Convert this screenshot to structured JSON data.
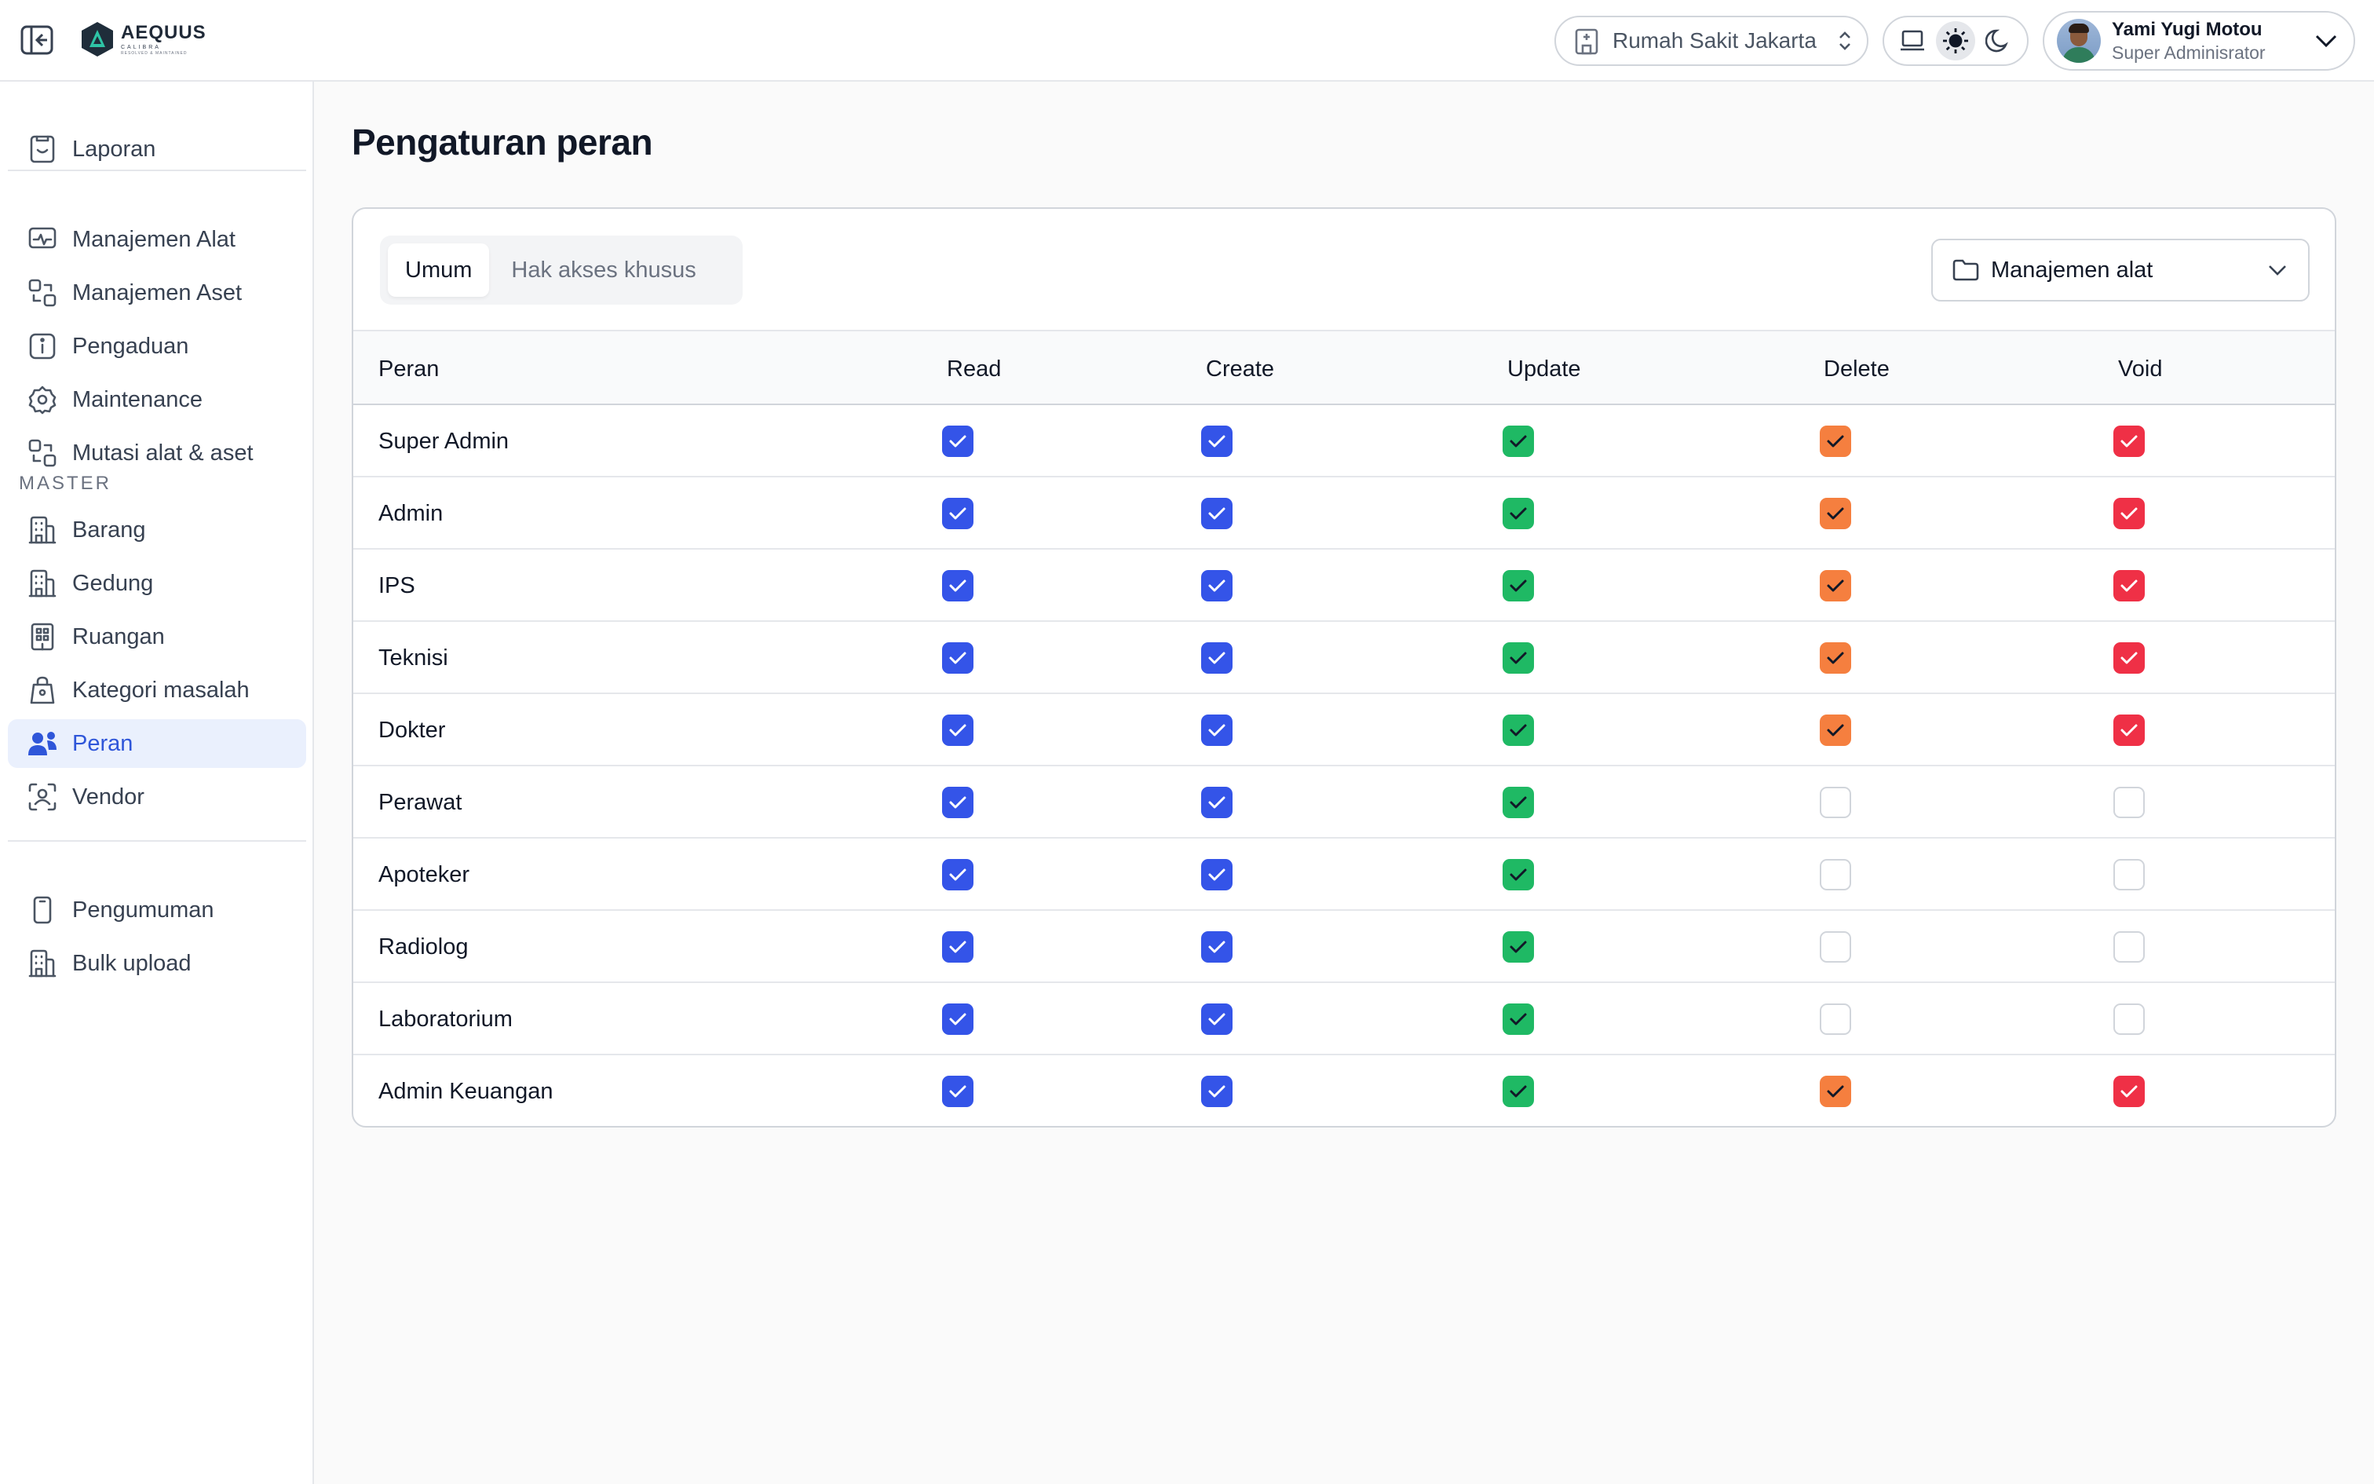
{
  "header": {
    "logo": {
      "name": "AEQUUS",
      "sub": "CALIBRA",
      "tagline": "RESOLVED & MAINTAINED"
    },
    "hospital": "Rumah Sakit Jakarta",
    "theme": {
      "options": [
        "system",
        "light",
        "dark"
      ],
      "active": "light"
    },
    "user": {
      "name": "Yami Yugi Motou",
      "role": "Super Adminisrator"
    }
  },
  "sidebar": {
    "top": [
      {
        "label": "Laporan",
        "icon": "report-icon"
      }
    ],
    "main": [
      {
        "label": "Manajemen Alat",
        "icon": "monitor-icon"
      },
      {
        "label": "Manajemen Aset",
        "icon": "asset-transfer-icon"
      },
      {
        "label": "Pengaduan",
        "icon": "info-icon"
      },
      {
        "label": "Maintenance",
        "icon": "settings-gear-icon"
      },
      {
        "label": "Mutasi alat & aset",
        "icon": "mutation-icon"
      }
    ],
    "master_title": "MASTER",
    "master": [
      {
        "label": "Barang",
        "icon": "building-icon"
      },
      {
        "label": "Gedung",
        "icon": "building-icon"
      },
      {
        "label": "Ruangan",
        "icon": "room-icon"
      },
      {
        "label": "Kategori masalah",
        "icon": "bag-icon"
      },
      {
        "label": "Peran",
        "icon": "users-icon",
        "active": true
      },
      {
        "label": "Vendor",
        "icon": "vendor-scan-icon"
      }
    ],
    "bottom": [
      {
        "label": "Pengumuman",
        "icon": "phone-icon"
      },
      {
        "label": "Bulk upload",
        "icon": "building-icon"
      }
    ]
  },
  "main": {
    "title": "Pengaturan peran",
    "tabs": [
      {
        "label": "Umum",
        "active": true
      },
      {
        "label": "Hak akses khusus",
        "active": false
      }
    ],
    "module_select": "Manajemen alat",
    "columns": [
      "Peran",
      "Read",
      "Create",
      "Update",
      "Delete",
      "Void"
    ],
    "permission_colors": {
      "Read": "#3454e8",
      "Create": "#3454e8",
      "Update": "#1fb964",
      "Delete": "#f57f3f",
      "Void": "#ef3046"
    },
    "rows": [
      {
        "role": "Super Admin",
        "perms": [
          true,
          true,
          true,
          true,
          true
        ]
      },
      {
        "role": "Admin",
        "perms": [
          true,
          true,
          true,
          true,
          true
        ]
      },
      {
        "role": "IPS",
        "perms": [
          true,
          true,
          true,
          true,
          true
        ]
      },
      {
        "role": "Teknisi",
        "perms": [
          true,
          true,
          true,
          true,
          true
        ]
      },
      {
        "role": "Dokter",
        "perms": [
          true,
          true,
          true,
          true,
          true
        ]
      },
      {
        "role": "Perawat",
        "perms": [
          true,
          true,
          true,
          false,
          false
        ]
      },
      {
        "role": "Apoteker",
        "perms": [
          true,
          true,
          true,
          false,
          false
        ]
      },
      {
        "role": "Radiolog",
        "perms": [
          true,
          true,
          true,
          false,
          false
        ]
      },
      {
        "role": "Laboratorium",
        "perms": [
          true,
          true,
          true,
          false,
          false
        ]
      },
      {
        "role": "Admin Keuangan",
        "perms": [
          true,
          true,
          true,
          true,
          true
        ]
      }
    ]
  }
}
